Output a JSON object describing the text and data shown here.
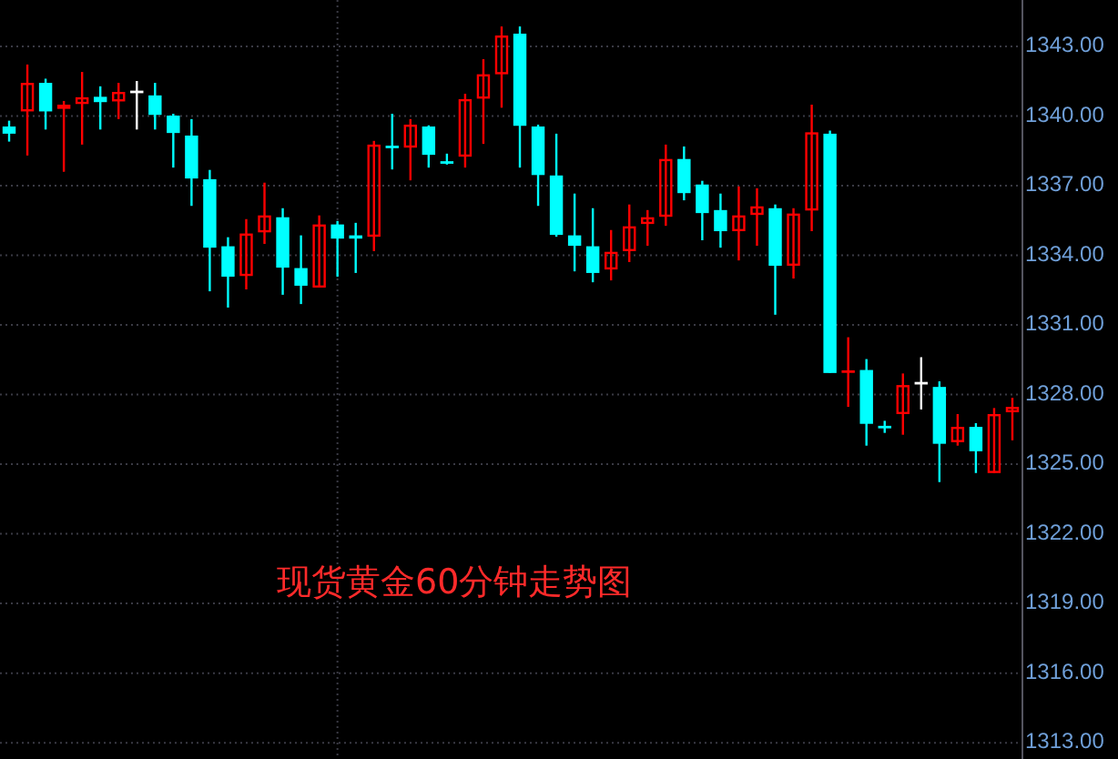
{
  "chart_data": {
    "type": "candlestick",
    "title": "现货黄金60分钟走势图",
    "categories": [
      null,
      null,
      null,
      null,
      null,
      null,
      null,
      null,
      null,
      null,
      null,
      null,
      null,
      null,
      null,
      null,
      null,
      null,
      null,
      null,
      null,
      null,
      null,
      null,
      null,
      null,
      null,
      null,
      null,
      null,
      null,
      null,
      null,
      null,
      null,
      null,
      null,
      null,
      null,
      null,
      null,
      null,
      null,
      null,
      null,
      null,
      null,
      null,
      null,
      null,
      null,
      null,
      null,
      null,
      null,
      null
    ],
    "ohlc": [
      [
        1339.55,
        1339.8,
        1338.9,
        1339.24
      ],
      [
        1340.2,
        1342.22,
        1338.3,
        1341.43
      ],
      [
        1341.43,
        1341.61,
        1339.42,
        1340.2
      ],
      [
        1340.31,
        1340.65,
        1337.6,
        1340.49
      ],
      [
        1340.52,
        1341.9,
        1338.77,
        1340.81
      ],
      [
        1340.83,
        1341.28,
        1339.42,
        1340.6
      ],
      [
        1340.63,
        1341.43,
        1339.87,
        1341.04
      ],
      [
        1341.04,
        1341.51,
        1339.42,
        1341.04
      ],
      [
        1340.89,
        1341.43,
        1339.42,
        1340.05
      ],
      [
        1340.02,
        1340.1,
        1337.78,
        1339.27
      ],
      [
        1339.16,
        1339.87,
        1336.13,
        1337.31
      ],
      [
        1337.28,
        1337.68,
        1332.45,
        1334.33
      ],
      [
        1334.39,
        1334.78,
        1331.75,
        1333.08
      ],
      [
        1333.11,
        1335.56,
        1332.53,
        1334.94
      ],
      [
        1334.99,
        1337.13,
        1334.49,
        1335.72
      ],
      [
        1335.64,
        1336.03,
        1332.3,
        1333.47
      ],
      [
        1333.45,
        1334.86,
        1331.9,
        1332.69
      ],
      [
        1332.61,
        1335.72,
        1332.61,
        1335.33
      ],
      [
        1335.33,
        1335.48,
        1333.08,
        1334.72
      ],
      [
        1334.86,
        1335.4,
        1333.24,
        1334.72
      ],
      [
        1334.8,
        1338.93,
        1334.18,
        1338.77
      ],
      [
        1338.72,
        1340.1,
        1337.7,
        1338.67
      ],
      [
        1338.64,
        1339.87,
        1337.23,
        1339.63
      ],
      [
        1339.55,
        1339.6,
        1337.78,
        1338.33
      ],
      [
        1338.04,
        1338.38,
        1337.91,
        1338.0
      ],
      [
        1338.25,
        1340.96,
        1337.78,
        1340.73
      ],
      [
        1340.75,
        1342.45,
        1338.8,
        1341.8
      ],
      [
        1341.8,
        1343.86,
        1340.36,
        1343.47
      ],
      [
        1343.55,
        1343.86,
        1337.78,
        1339.58
      ],
      [
        1339.55,
        1339.63,
        1336.13,
        1337.46
      ],
      [
        1337.44,
        1339.24,
        1334.8,
        1334.88
      ],
      [
        1334.86,
        1336.66,
        1333.31,
        1334.41
      ],
      [
        1334.39,
        1336.03,
        1332.84,
        1333.24
      ],
      [
        1333.39,
        1335.09,
        1332.92,
        1334.15
      ],
      [
        1334.18,
        1336.19,
        1333.71,
        1335.25
      ],
      [
        1335.35,
        1335.95,
        1334.41,
        1335.64
      ],
      [
        1335.66,
        1338.77,
        1335.27,
        1338.15
      ],
      [
        1338.15,
        1338.69,
        1336.37,
        1336.68
      ],
      [
        1337.05,
        1337.21,
        1334.65,
        1335.82
      ],
      [
        1335.95,
        1336.66,
        1334.33,
        1335.04
      ],
      [
        1335.04,
        1336.97,
        1333.78,
        1335.72
      ],
      [
        1335.74,
        1336.89,
        1334.41,
        1336.11
      ],
      [
        1336.03,
        1336.19,
        1331.44,
        1333.55
      ],
      [
        1333.55,
        1336.03,
        1333.0,
        1335.8
      ],
      [
        1335.93,
        1340.49,
        1335.04,
        1339.3
      ],
      [
        1339.24,
        1339.37,
        1328.93,
        1328.93
      ],
      [
        1328.93,
        1330.47,
        1327.47,
        1328.99
      ],
      [
        1329.06,
        1329.53,
        1325.8,
        1326.74
      ],
      [
        1326.63,
        1326.87,
        1326.35,
        1326.6
      ],
      [
        1327.16,
        1328.91,
        1326.27,
        1328.41
      ],
      [
        1328.49,
        1329.61,
        1327.36,
        1328.49
      ],
      [
        1328.33,
        1328.57,
        1324.23,
        1325.88
      ],
      [
        1325.95,
        1327.16,
        1325.8,
        1326.61
      ],
      [
        1326.61,
        1326.77,
        1324.62,
        1325.56
      ],
      [
        1324.62,
        1327.42,
        1324.62,
        1327.16
      ],
      [
        1327.24,
        1327.86,
        1326.03,
        1327.47
      ]
    ],
    "colors": [
      "#00ffff",
      "#ff0000",
      "#00ffff",
      "#ff0000",
      "#ff0000",
      "#00ffff",
      "#ff0000",
      "#ffffff",
      "#00ffff",
      "#00ffff",
      "#00ffff",
      "#00ffff",
      "#00ffff",
      "#ff0000",
      "#ff0000",
      "#00ffff",
      "#00ffff",
      "#ff0000",
      "#00ffff",
      "#00ffff",
      "#ff0000",
      "#00ffff",
      "#ff0000",
      "#00ffff",
      "#00ffff",
      "#ff0000",
      "#ff0000",
      "#ff0000",
      "#00ffff",
      "#00ffff",
      "#00ffff",
      "#00ffff",
      "#00ffff",
      "#ff0000",
      "#ff0000",
      "#ff0000",
      "#ff0000",
      "#00ffff",
      "#00ffff",
      "#00ffff",
      "#ff0000",
      "#ff0000",
      "#00ffff",
      "#ff0000",
      "#ff0000",
      "#00ffff",
      "#ff0000",
      "#00ffff",
      "#00ffff",
      "#ff0000",
      "#ffffff",
      "#00ffff",
      "#ff0000",
      "#00ffff",
      "#ff0000",
      "#ff0000"
    ],
    "ylim": [
      1312.3,
      1345
    ],
    "yticks": [
      {
        "value": 1313,
        "label": "1313.00"
      },
      {
        "value": 1316,
        "label": "1316.00"
      },
      {
        "value": 1319,
        "label": "1319.00"
      },
      {
        "value": 1322,
        "label": "1322.00"
      },
      {
        "value": 1325,
        "label": "1325.00"
      },
      {
        "value": 1328,
        "label": "1328.00"
      },
      {
        "value": 1331,
        "label": "1331.00"
      },
      {
        "value": 1334,
        "label": "1334.00"
      },
      {
        "value": 1337,
        "label": "1337.00"
      },
      {
        "value": 1340,
        "label": "1340.00"
      },
      {
        "value": 1343,
        "label": "1343.00"
      }
    ],
    "grid": "y"
  }
}
